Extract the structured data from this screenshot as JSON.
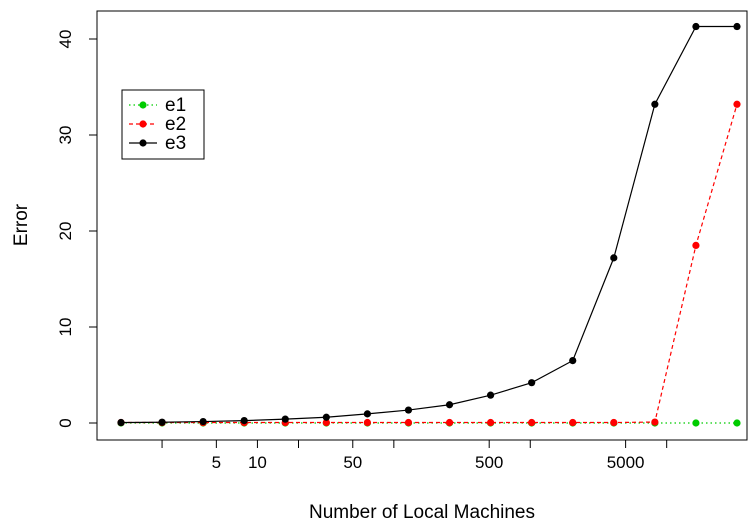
{
  "chart_data": {
    "type": "line",
    "title": "",
    "xlabel": "Number of Local Machines",
    "ylabel": "Error",
    "x_scale": "log",
    "x_ticks": [
      2,
      5,
      10,
      20,
      50,
      100,
      500,
      1000,
      5000,
      10000
    ],
    "x_tick_labels": [
      "",
      "5",
      "10",
      "",
      "50",
      "",
      "500",
      "",
      "5000",
      ""
    ],
    "y_ticks": [
      0,
      10,
      20,
      30,
      40
    ],
    "y_tick_labels": [
      "0",
      "10",
      "20",
      "30",
      "40"
    ],
    "ylim": [
      0,
      42
    ],
    "x": [
      1,
      2,
      4,
      8,
      16,
      32,
      64,
      128,
      256,
      512,
      1024,
      2048,
      4096,
      8192,
      16384,
      32768
    ],
    "series": [
      {
        "name": "e1",
        "color": "#00cc00",
        "line_style": "dotted",
        "values": [
          0,
          0,
          0,
          0,
          0,
          0,
          0,
          0,
          0,
          0,
          0,
          0,
          0,
          0,
          0,
          0
        ]
      },
      {
        "name": "e2",
        "color": "#ff0000",
        "line_style": "dashed",
        "values": [
          0.05,
          0.05,
          0.05,
          0.05,
          0.05,
          0.05,
          0.05,
          0.05,
          0.05,
          0.05,
          0.05,
          0.05,
          0.05,
          0.1,
          18.5,
          33.2
        ]
      },
      {
        "name": "e3",
        "color": "#000000",
        "line_style": "solid",
        "values": [
          0.05,
          0.08,
          0.15,
          0.25,
          0.4,
          0.6,
          0.95,
          1.35,
          1.9,
          2.9,
          4.2,
          6.5,
          17.2,
          33.2,
          41.3,
          41.3
        ]
      }
    ],
    "legend": {
      "position": "top-left",
      "entries": [
        "e1",
        "e2",
        "e3"
      ]
    },
    "grid": false
  }
}
